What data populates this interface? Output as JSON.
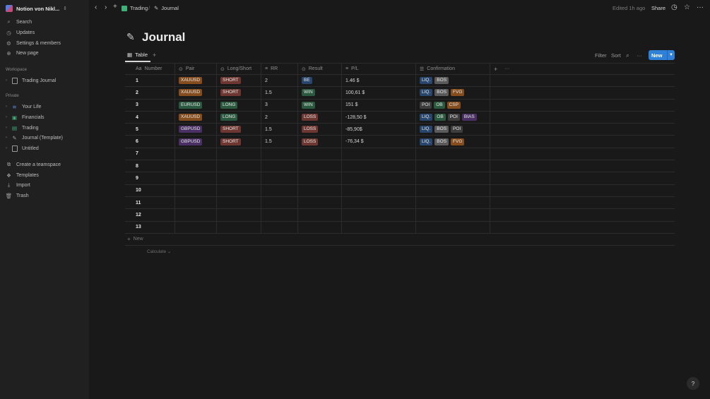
{
  "workspace": {
    "name": "Notion von Nikl..."
  },
  "sidebar": {
    "top_items": [
      {
        "label": "Search",
        "icon": "search-icon"
      },
      {
        "label": "Updates",
        "icon": "clock-icon"
      },
      {
        "label": "Settings & members",
        "icon": "gear-icon"
      },
      {
        "label": "New page",
        "icon": "plus-circle-icon"
      }
    ],
    "workspace_label": "Workspace",
    "workspace_pages": [
      {
        "label": "Trading Journal"
      }
    ],
    "private_label": "Private",
    "private_pages": [
      {
        "label": "Your Life"
      },
      {
        "label": "Financials"
      },
      {
        "label": "Trading"
      },
      {
        "label": "Journal (Template)"
      },
      {
        "label": "Untitled"
      }
    ],
    "bottom_items": [
      {
        "label": "Create a teamspace"
      },
      {
        "label": "Templates"
      },
      {
        "label": "Import"
      },
      {
        "label": "Trash"
      }
    ]
  },
  "topbar": {
    "breadcrumb": [
      "Trading",
      "Journal"
    ],
    "edited": "Edited 1h ago",
    "share": "Share"
  },
  "page": {
    "title": "Journal"
  },
  "view": {
    "tab": "Table",
    "filter": "Filter",
    "sort": "Sort",
    "new_button": "New"
  },
  "table": {
    "columns": [
      "Number",
      "Pair",
      "Long/Short",
      "RR",
      "Result",
      "P/L",
      "Confirmation"
    ],
    "number_prefix": "Aa",
    "rows": [
      {
        "num": "1",
        "pair": "XAUUSD",
        "ls": "SHORT",
        "rr": "2",
        "result": "BE",
        "pl": "1.46 $",
        "conf": [
          "LIQ.",
          "BOS"
        ]
      },
      {
        "num": "2",
        "pair": "XAUUSD",
        "ls": "SHORT",
        "rr": "1.5",
        "result": "WIN",
        "pl": "100,61 $",
        "conf": [
          "LIQ.",
          "BOS",
          "FVG"
        ]
      },
      {
        "num": "3",
        "pair": "EURUSD",
        "ls": "LONG",
        "rr": "3",
        "result": "WIN",
        "pl": "151 $",
        "conf": [
          "POI",
          "OB",
          "CSP"
        ]
      },
      {
        "num": "4",
        "pair": "XAUUSD",
        "ls": "LONG",
        "rr": "2",
        "result": "LOSS",
        "pl": "-128,50 $",
        "conf": [
          "LIQ.",
          "OB",
          "POI",
          "BIAS"
        ]
      },
      {
        "num": "5",
        "pair": "GBPUSD",
        "ls": "SHORT",
        "rr": "1.5",
        "result": "LOSS",
        "pl": "-85,90$",
        "conf": [
          "LIQ.",
          "BOS",
          "POI"
        ]
      },
      {
        "num": "6",
        "pair": "GBPUSD",
        "ls": "SHORT",
        "rr": "1.5",
        "result": "LOSS",
        "pl": "-76,34 $",
        "conf": [
          "LIQ.",
          "BOS",
          "FVG"
        ]
      },
      {
        "num": "7"
      },
      {
        "num": "8"
      },
      {
        "num": "9"
      },
      {
        "num": "10"
      },
      {
        "num": "11"
      },
      {
        "num": "12"
      },
      {
        "num": "13"
      }
    ],
    "add_row": "New",
    "calculate": "Calculate"
  },
  "tag_colors": {
    "XAUUSD": "#854c1d",
    "EURUSD": "#2b593f",
    "GBPUSD": "#492f64",
    "SHORT": "#6e3630",
    "LONG": "#2b593f",
    "BE": "#28456c",
    "WIN": "#2b593f",
    "LOSS": "#6e3630",
    "LIQ.": "#28456c",
    "BOS": "#5a5a5a",
    "FVG": "#854c1d",
    "POI": "#3d3d3d",
    "OB": "#2b593f",
    "CSP": "#854c1d",
    "BIAS": "#492f64"
  },
  "help": "?"
}
